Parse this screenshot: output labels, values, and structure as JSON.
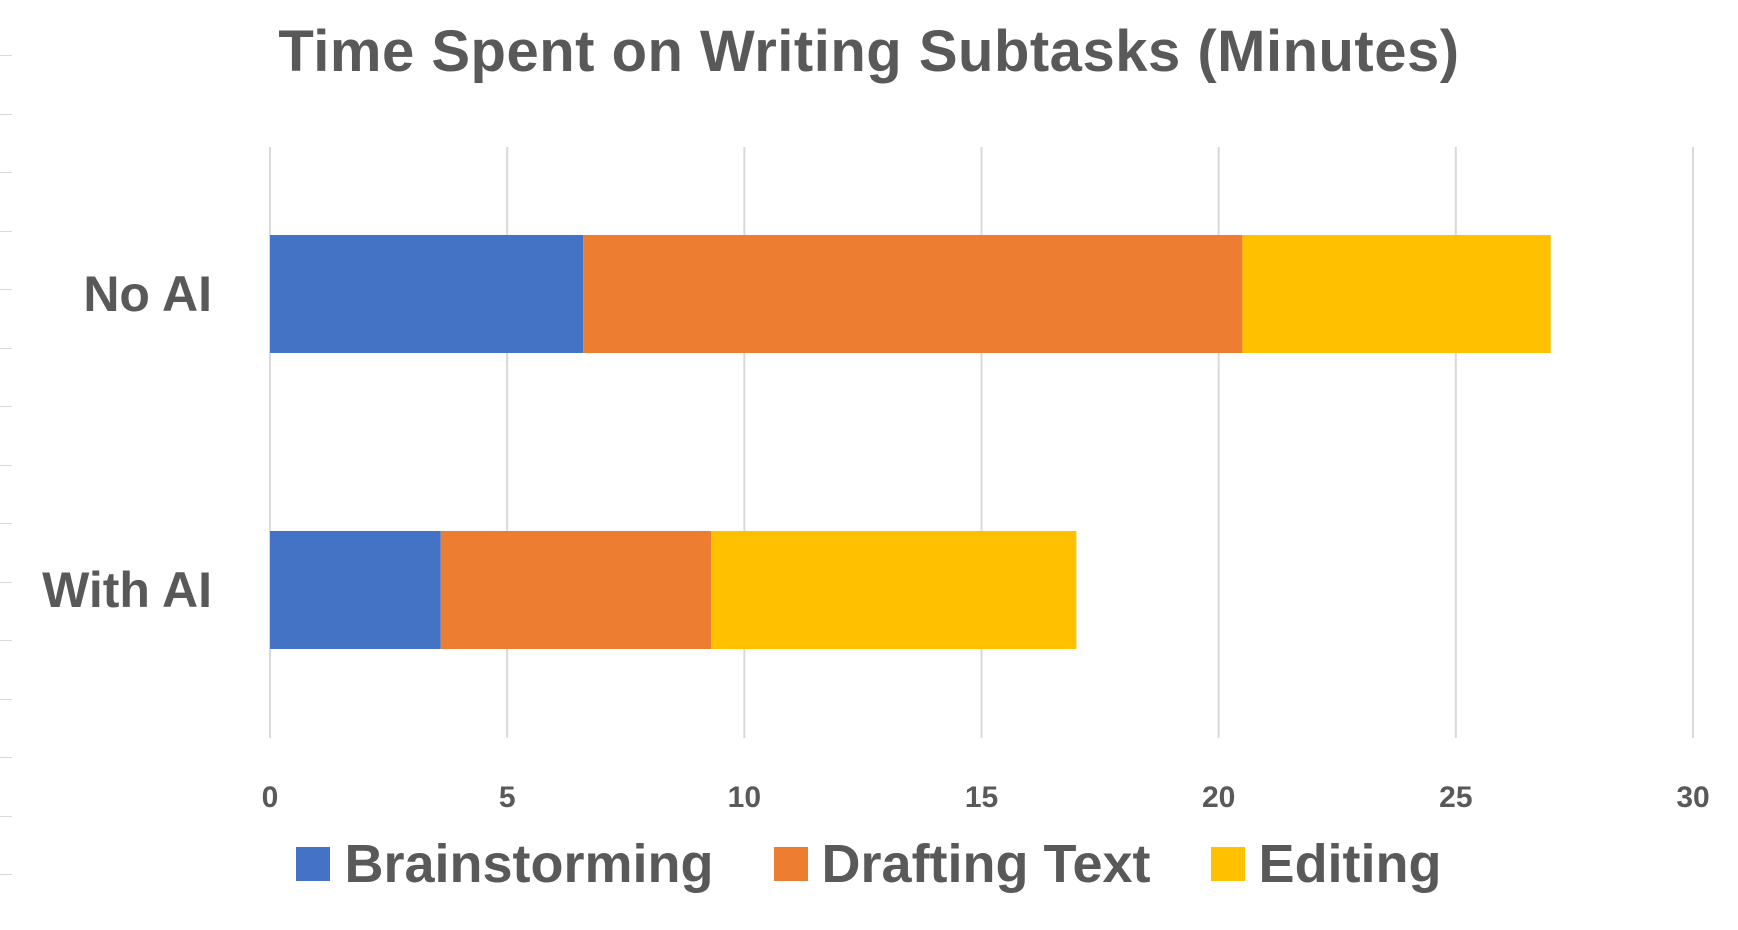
{
  "chart_data": {
    "type": "bar",
    "orientation": "horizontal",
    "stacked": true,
    "title": "Time Spent on Writing Subtasks (Minutes)",
    "categories": [
      "No AI",
      "With AI"
    ],
    "series": [
      {
        "name": "Brainstorming",
        "values": [
          6.6,
          3.6
        ],
        "color": "#4472c4"
      },
      {
        "name": "Drafting Text",
        "values": [
          13.9,
          5.7
        ],
        "color": "#ed7d31"
      },
      {
        "name": "Editing",
        "values": [
          6.5,
          7.7
        ],
        "color": "#ffc000"
      }
    ],
    "xlim": [
      0,
      30
    ],
    "xticks": [
      "0",
      "5",
      "10",
      "15",
      "20",
      "25",
      "30"
    ],
    "grid": true,
    "legend_position": "bottom"
  }
}
